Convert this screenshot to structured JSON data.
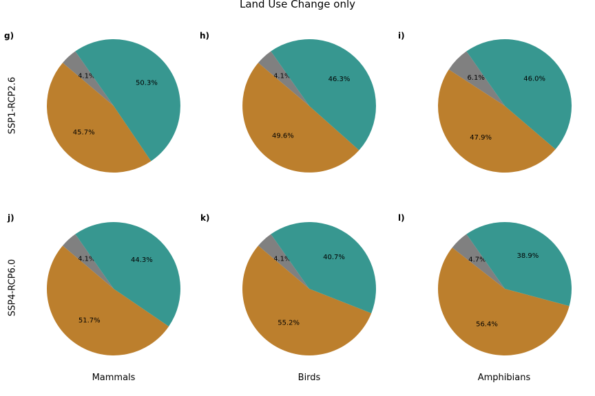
{
  "figure": {
    "title": "Land Use Change only",
    "row_labels": [
      "SSP1-RCP2.6",
      "SSP4-RCP6.0"
    ],
    "col_labels": [
      "Mammals",
      "Birds",
      "Amphibians"
    ]
  },
  "chart_data": [
    {
      "type": "pie",
      "panel": "g)",
      "row": "SSP1-RCP2.6",
      "column": "Mammals",
      "slices": [
        {
          "value": 4.1,
          "label": "4.1%",
          "color": "#808080"
        },
        {
          "value": 45.7,
          "label": "45.7%",
          "color": "#bc7f2d"
        },
        {
          "value": 50.3,
          "label": "50.3%",
          "color": "#379790"
        }
      ]
    },
    {
      "type": "pie",
      "panel": "h)",
      "row": "SSP1-RCP2.6",
      "column": "Birds",
      "slices": [
        {
          "value": 4.1,
          "label": "4.1%",
          "color": "#808080"
        },
        {
          "value": 49.6,
          "label": "49.6%",
          "color": "#bc7f2d"
        },
        {
          "value": 46.3,
          "label": "46.3%",
          "color": "#379790"
        }
      ]
    },
    {
      "type": "pie",
      "panel": "i)",
      "row": "SSP1-RCP2.6",
      "column": "Amphibians",
      "slices": [
        {
          "value": 6.1,
          "label": "6.1%",
          "color": "#808080"
        },
        {
          "value": 47.9,
          "label": "47.9%",
          "color": "#bc7f2d"
        },
        {
          "value": 46.0,
          "label": "46.0%",
          "color": "#379790"
        }
      ]
    },
    {
      "type": "pie",
      "panel": "j)",
      "row": "SSP4-RCP6.0",
      "column": "Mammals",
      "slices": [
        {
          "value": 4.1,
          "label": "4.1%",
          "color": "#808080"
        },
        {
          "value": 51.7,
          "label": "51.7%",
          "color": "#bc7f2d"
        },
        {
          "value": 44.3,
          "label": "44.3%",
          "color": "#379790"
        }
      ]
    },
    {
      "type": "pie",
      "panel": "k)",
      "row": "SSP4-RCP6.0",
      "column": "Birds",
      "slices": [
        {
          "value": 4.1,
          "label": "4.1%",
          "color": "#808080"
        },
        {
          "value": 55.2,
          "label": "55.2%",
          "color": "#bc7f2d"
        },
        {
          "value": 40.7,
          "label": "40.7%",
          "color": "#379790"
        }
      ]
    },
    {
      "type": "pie",
      "panel": "l)",
      "row": "SSP4-RCP6.0",
      "column": "Amphibians",
      "slices": [
        {
          "value": 4.7,
          "label": "4.7%",
          "color": "#808080"
        },
        {
          "value": 56.4,
          "label": "56.4%",
          "color": "#bc7f2d"
        },
        {
          "value": 38.9,
          "label": "38.9%",
          "color": "#379790"
        }
      ]
    }
  ]
}
